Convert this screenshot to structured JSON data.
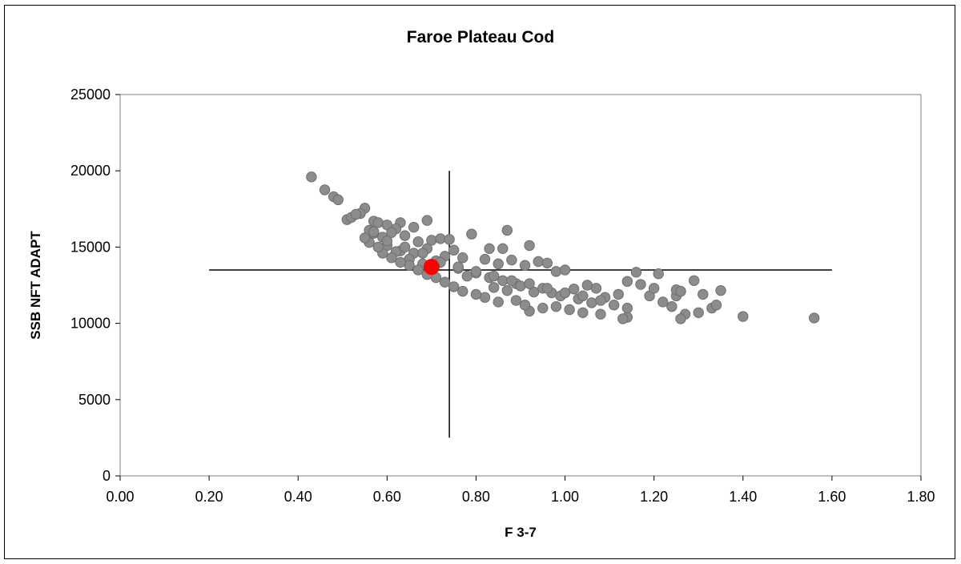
{
  "chart_data": {
    "type": "scatter",
    "title": "Faroe Plateau Cod",
    "xlabel": "F 3-7",
    "ylabel": "SSB NFT ADAPT",
    "xlim": [
      0,
      1.8
    ],
    "ylim": [
      0,
      25000
    ],
    "x_ticks": [
      "0.00",
      "0.20",
      "0.40",
      "0.60",
      "0.80",
      "1.00",
      "1.20",
      "1.40",
      "1.60",
      "1.80"
    ],
    "y_ticks": [
      "0",
      "5000",
      "10000",
      "15000",
      "20000",
      "25000"
    ],
    "grid": false,
    "legend": "none",
    "colors": {
      "points": "#8c8c8c",
      "point_edge": "#6e6e6e",
      "estimate": "#ff0000",
      "lines": "#000000",
      "plot_area": "#ffffff"
    },
    "series": [
      {
        "values": [
          [
            0.43,
            19600
          ],
          [
            0.46,
            18750
          ],
          [
            0.48,
            18300
          ],
          [
            0.49,
            18100
          ],
          [
            0.55,
            17550
          ],
          [
            0.54,
            17200
          ],
          [
            0.51,
            16800
          ],
          [
            0.52,
            16950
          ],
          [
            0.53,
            17150
          ],
          [
            0.57,
            16700
          ],
          [
            0.58,
            16600
          ],
          [
            0.6,
            16450
          ],
          [
            0.63,
            16600
          ],
          [
            0.62,
            16200
          ],
          [
            0.66,
            16300
          ],
          [
            0.69,
            16750
          ],
          [
            0.56,
            16100
          ],
          [
            0.57,
            15900
          ],
          [
            0.59,
            15650
          ],
          [
            0.61,
            15950
          ],
          [
            0.64,
            15750
          ],
          [
            0.67,
            15350
          ],
          [
            0.7,
            15450
          ],
          [
            0.72,
            15550
          ],
          [
            0.74,
            15500
          ],
          [
            0.69,
            14900
          ],
          [
            0.66,
            14600
          ],
          [
            0.63,
            14750
          ],
          [
            0.6,
            15100
          ],
          [
            0.62,
            14700
          ],
          [
            0.65,
            14200
          ],
          [
            0.68,
            13900
          ],
          [
            0.71,
            14100
          ],
          [
            0.73,
            14400
          ],
          [
            0.75,
            14800
          ],
          [
            0.77,
            14300
          ],
          [
            0.79,
            15850
          ],
          [
            0.83,
            14900
          ],
          [
            0.86,
            14900
          ],
          [
            0.87,
            16100
          ],
          [
            0.92,
            15100
          ],
          [
            0.82,
            14200
          ],
          [
            0.85,
            13900
          ],
          [
            0.88,
            14150
          ],
          [
            0.91,
            13800
          ],
          [
            0.94,
            14050
          ],
          [
            0.96,
            13950
          ],
          [
            0.98,
            13400
          ],
          [
            1.0,
            13500
          ],
          [
            0.76,
            13600
          ],
          [
            0.78,
            13100
          ],
          [
            0.8,
            13300
          ],
          [
            0.83,
            13000
          ],
          [
            0.86,
            12800
          ],
          [
            0.89,
            12600
          ],
          [
            0.84,
            12350
          ],
          [
            0.87,
            12150
          ],
          [
            0.9,
            12450
          ],
          [
            0.93,
            12050
          ],
          [
            0.95,
            12300
          ],
          [
            0.97,
            12000
          ],
          [
            0.99,
            11800
          ],
          [
            1.02,
            12250
          ],
          [
            1.05,
            12500
          ],
          [
            1.07,
            12300
          ],
          [
            1.03,
            11600
          ],
          [
            1.06,
            11350
          ],
          [
            1.09,
            11700
          ],
          [
            1.12,
            11900
          ],
          [
            1.14,
            12750
          ],
          [
            1.16,
            13350
          ],
          [
            1.17,
            12550
          ],
          [
            1.21,
            13250
          ],
          [
            1.19,
            11800
          ],
          [
            1.2,
            12300
          ],
          [
            1.22,
            11400
          ],
          [
            1.25,
            11800
          ],
          [
            1.25,
            12200
          ],
          [
            1.26,
            12100
          ],
          [
            1.29,
            12800
          ],
          [
            1.31,
            11900
          ],
          [
            1.35,
            12150
          ],
          [
            1.24,
            11100
          ],
          [
            1.27,
            10600
          ],
          [
            1.3,
            10700
          ],
          [
            1.33,
            11000
          ],
          [
            1.34,
            11200
          ],
          [
            1.26,
            10300
          ],
          [
            1.14,
            10400
          ],
          [
            1.13,
            10300
          ],
          [
            1.14,
            11000
          ],
          [
            1.08,
            10600
          ],
          [
            1.04,
            10700
          ],
          [
            1.01,
            10900
          ],
          [
            0.98,
            11100
          ],
          [
            0.95,
            11000
          ],
          [
            0.92,
            10800
          ],
          [
            0.91,
            11200
          ],
          [
            0.89,
            11500
          ],
          [
            0.85,
            11400
          ],
          [
            0.82,
            11700
          ],
          [
            0.8,
            11900
          ],
          [
            0.77,
            12100
          ],
          [
            0.75,
            12400
          ],
          [
            0.73,
            12700
          ],
          [
            0.71,
            13000
          ],
          [
            0.69,
            13200
          ],
          [
            0.67,
            13500
          ],
          [
            0.65,
            13800
          ],
          [
            0.63,
            14000
          ],
          [
            0.61,
            14300
          ],
          [
            0.59,
            14600
          ],
          [
            0.58,
            15000
          ],
          [
            0.56,
            15300
          ],
          [
            0.55,
            15600
          ],
          [
            0.57,
            16000
          ],
          [
            0.6,
            15400
          ],
          [
            0.64,
            15000
          ],
          [
            0.68,
            14600
          ],
          [
            0.72,
            14000
          ],
          [
            0.76,
            13700
          ],
          [
            0.8,
            13400
          ],
          [
            0.84,
            13100
          ],
          [
            0.88,
            12800
          ],
          [
            0.92,
            12600
          ],
          [
            0.96,
            12300
          ],
          [
            1.0,
            12000
          ],
          [
            1.04,
            11800
          ],
          [
            1.08,
            11500
          ],
          [
            1.11,
            11200
          ],
          [
            1.4,
            10450
          ],
          [
            1.56,
            10350
          ]
        ]
      },
      {
        "values": [
          [
            0.7,
            13700
          ]
        ]
      }
    ],
    "reference_lines": [
      {
        "orientation": "horizontal",
        "y": 13500,
        "x_from": 0.2,
        "x_to": 1.6
      },
      {
        "orientation": "vertical",
        "x": 0.74,
        "y_from": 2500,
        "y_to": 20000
      }
    ]
  }
}
